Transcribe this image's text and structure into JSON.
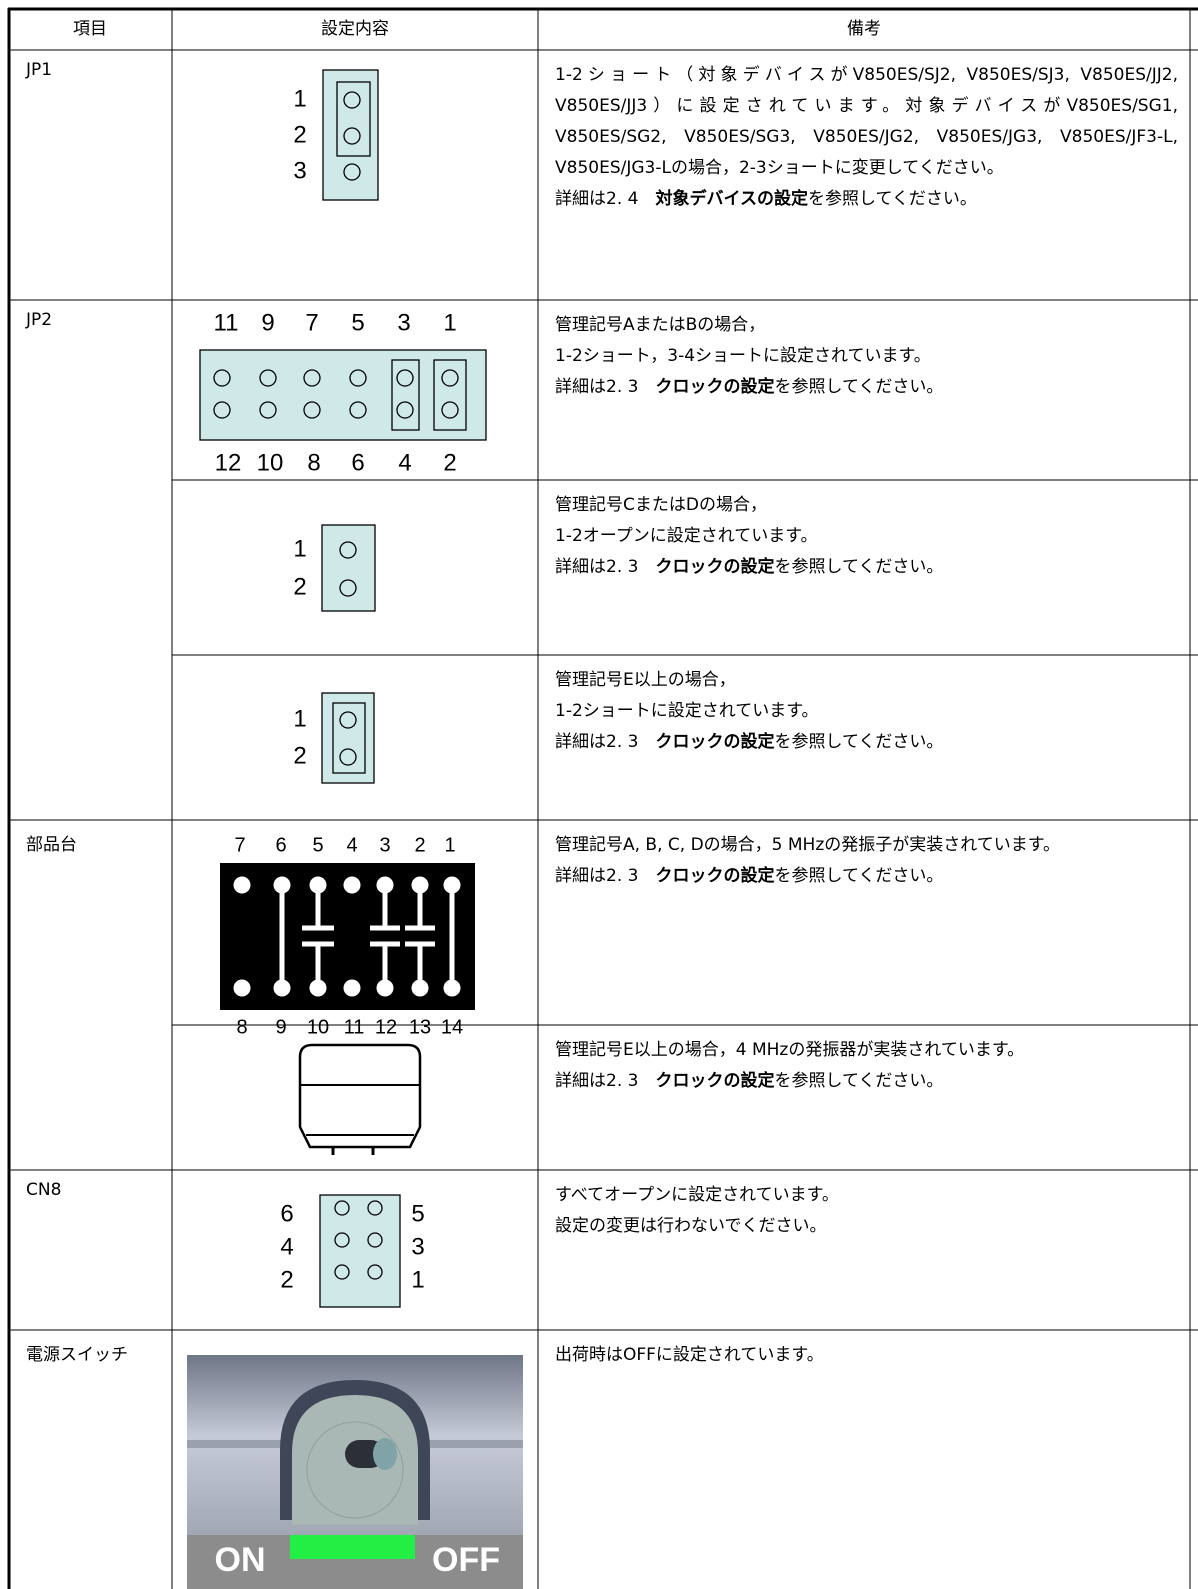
{
  "table": {
    "header": {
      "item": "項目",
      "setting": "設定内容",
      "note": "備考"
    },
    "rows": [
      {
        "item": "JP1",
        "settings": [
          {
            "labels": [
              "1",
              "2",
              "3"
            ],
            "note": [
              "1-2ショート（対象デバイスがV850ES/SJ2, V850ES/SJ3, V850ES/JJ2, V850ES/JJ3）に設定されています。対象デバイスがV850ES/SG1, V850ES/SG2, V850ES/SG3, V850ES/JG2, V850ES/JG3, V850ES/JF3-L, V850ES/JG3-Lの場合，2-3ショートに変更してください。"
            ],
            "ref": {
              "before": "詳細は2. 4　",
              "bold": "対象デバイスの設定",
              "after": "を参照してください。"
            }
          }
        ]
      },
      {
        "item": "JP2",
        "settings": [
          {
            "top_labels": [
              "11",
              "9",
              "7",
              "5",
              "3",
              "1"
            ],
            "bottom_labels": [
              "12",
              "10",
              "8",
              "6",
              "4",
              "2"
            ],
            "note": [
              "管理記号AまたはBの場合，",
              "1-2ショート，3-4ショートに設定されています。"
            ],
            "ref": {
              "before": "詳細は2. 3　",
              "bold": "クロックの設定",
              "after": "を参照してください。"
            }
          },
          {
            "labels": [
              "1",
              "2"
            ],
            "note": [
              "管理記号CまたはDの場合，",
              "1-2オープンに設定されています。"
            ],
            "ref": {
              "before": "詳細は2. 3　",
              "bold": "クロックの設定",
              "after": "を参照してください。"
            }
          },
          {
            "labels": [
              "1",
              "2"
            ],
            "note": [
              "管理記号E以上の場合，",
              "1-2ショートに設定されています。"
            ],
            "ref": {
              "before": "詳細は2. 3　",
              "bold": "クロックの設定",
              "after": "を参照してください。"
            }
          }
        ]
      },
      {
        "item": "部品台",
        "settings": [
          {
            "top_labels": [
              "7",
              "6",
              "5",
              "4",
              "3",
              "2",
              "1"
            ],
            "bottom_labels": [
              "8",
              "9",
              "10",
              "11",
              "12",
              "13",
              "14"
            ],
            "note": [
              "管理記号A, B, C, Dの場合，5 MHzの発振子が実装されています。"
            ],
            "ref": {
              "before": "詳細は2. 3　",
              "bold": "クロックの設定",
              "after": "を参照してください。"
            }
          },
          {
            "note": [
              "管理記号E以上の場合，4 MHzの発振器が実装されています。"
            ],
            "ref": {
              "before": "詳細は2. 3　",
              "bold": "クロックの設定",
              "after": "を参照してください。"
            }
          }
        ]
      },
      {
        "item": "CN8",
        "settings": [
          {
            "left_labels": [
              "6",
              "4",
              "2"
            ],
            "right_labels": [
              "5",
              "3",
              "1"
            ],
            "note": [
              "すべてオープンに設定されています。",
              "設定の変更は行わないでください。"
            ]
          }
        ]
      },
      {
        "item": "電源スイッチ",
        "settings": [
          {
            "labels": [
              "ON",
              "OFF"
            ],
            "note": [
              "出荷時はOFFに設定されています。"
            ]
          }
        ]
      }
    ]
  }
}
